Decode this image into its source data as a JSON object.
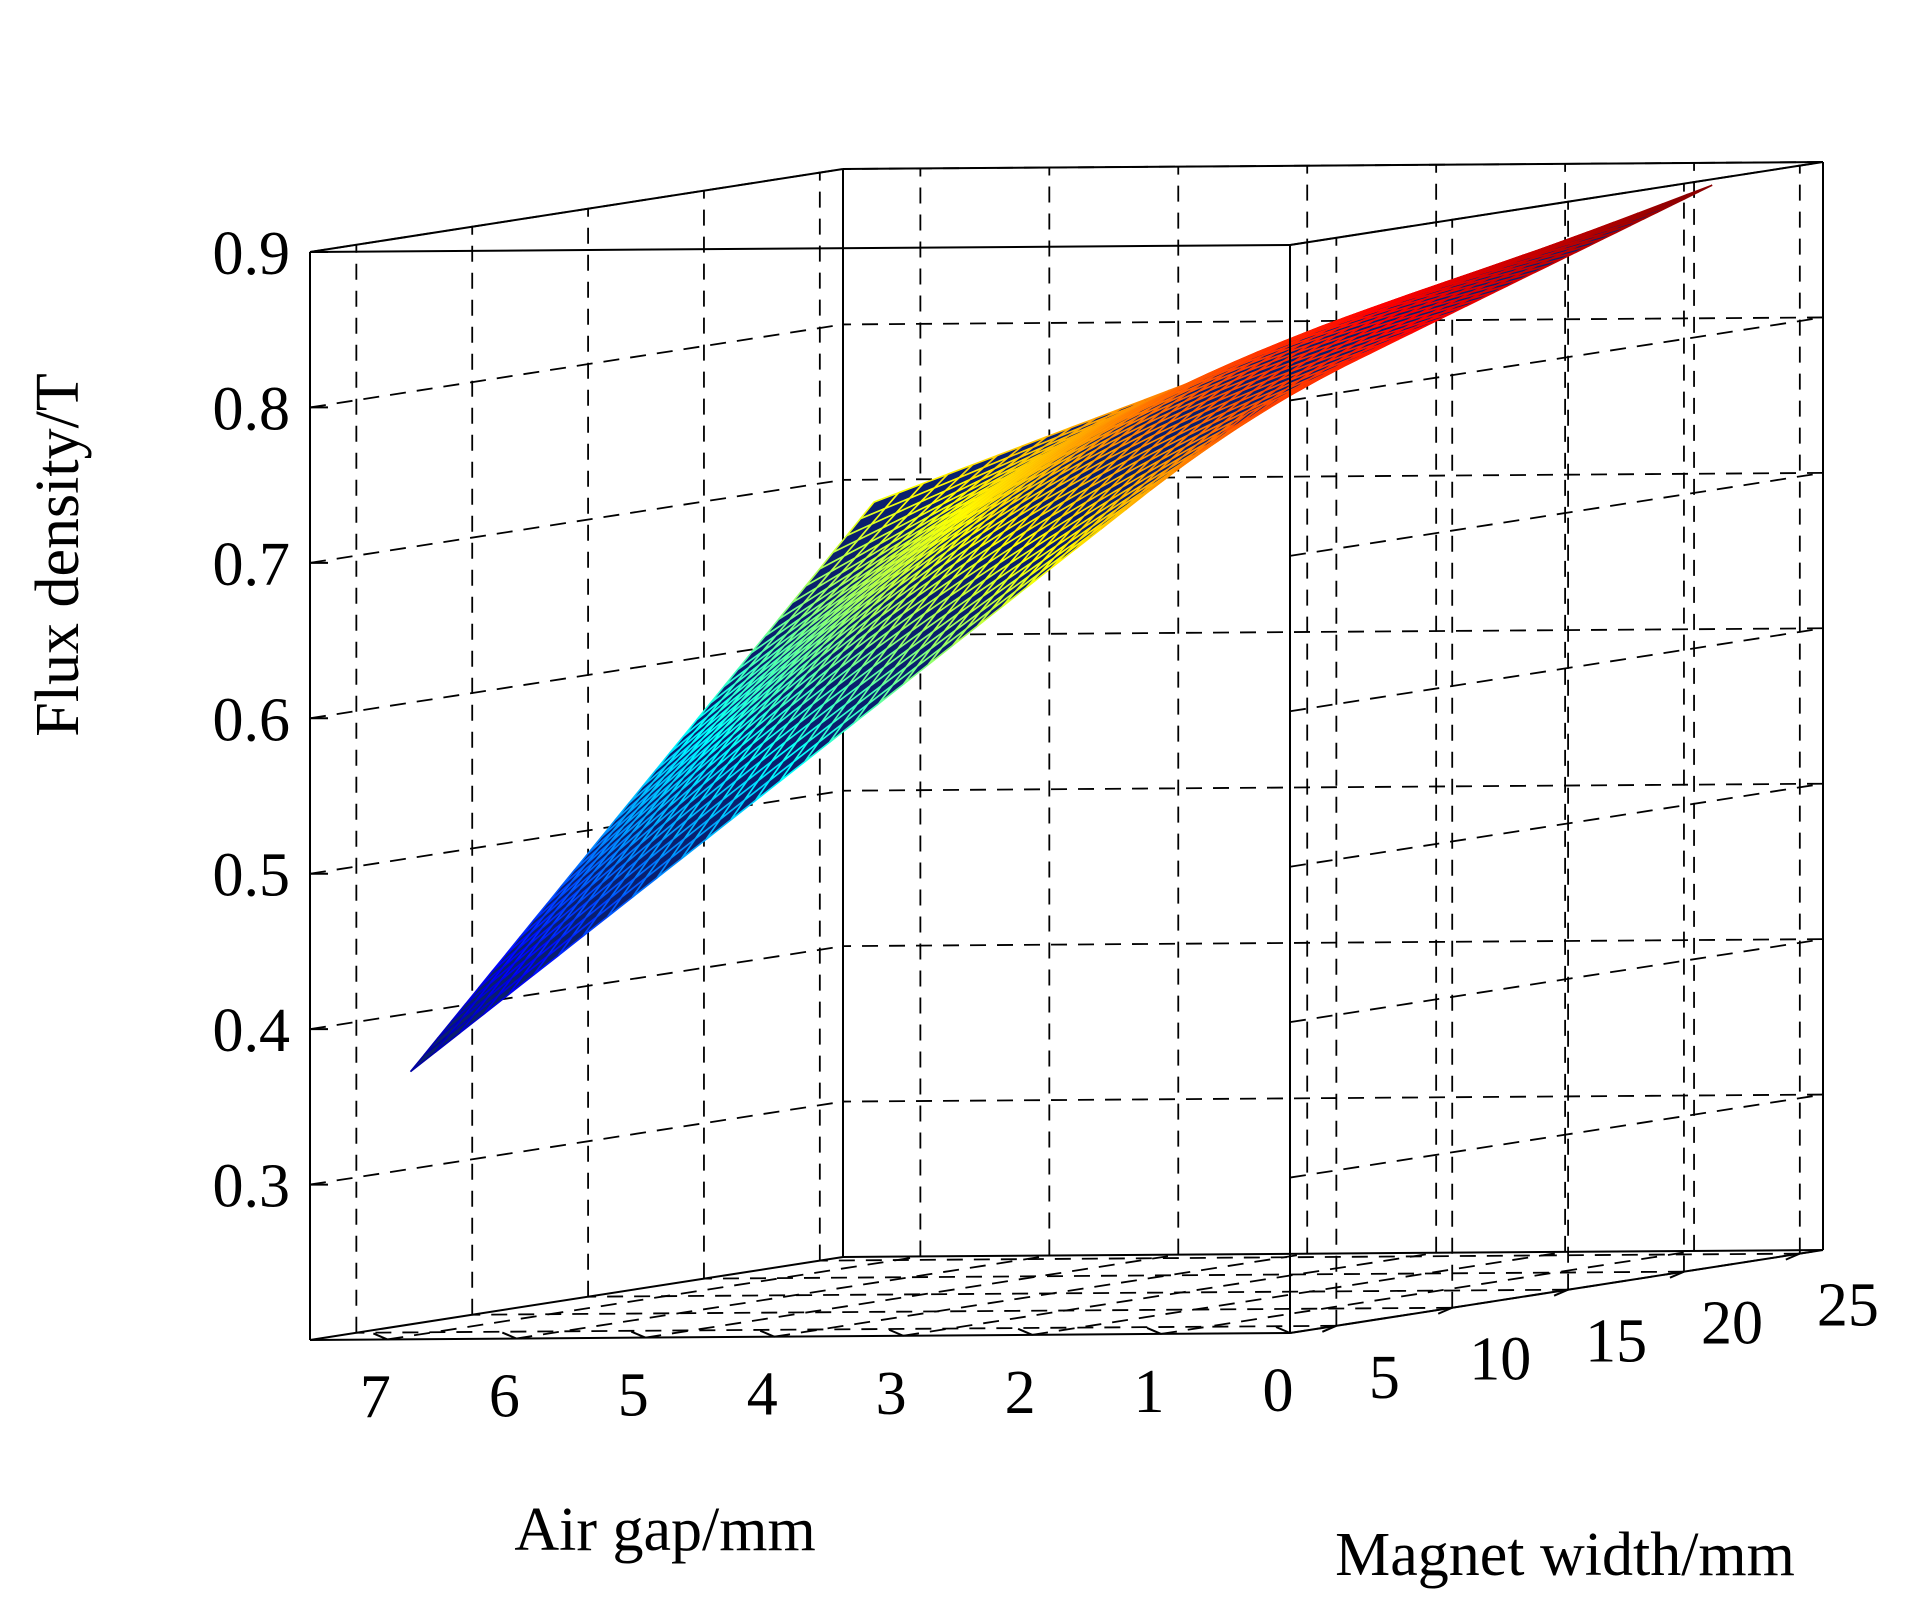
{
  "chart_data": {
    "type": "surface",
    "title": "",
    "xlabel": "Air gap/mm",
    "ylabel": "Magnet width/mm",
    "zlabel": "Flux density/T",
    "x_ticks": [
      "0",
      "1",
      "2",
      "3",
      "4",
      "5",
      "6",
      "7"
    ],
    "y_ticks": [
      "5",
      "10",
      "15",
      "20",
      "25"
    ],
    "z_ticks": [
      "0.3",
      "0.4",
      "0.5",
      "0.6",
      "0.7",
      "0.8",
      "0.9"
    ],
    "xlim": [
      0,
      7.6
    ],
    "ylim": [
      3,
      26
    ],
    "zlim": [
      0.2,
      0.9
    ],
    "grid": true,
    "colormap": "jet",
    "colormap_colors": [
      "#00008f",
      "#0000ff",
      "#00ffff",
      "#ffff00",
      "#ff0000",
      "#800000"
    ],
    "surface": {
      "description_ranges": {
        "air_gap": [
          0.5,
          7.0
        ],
        "magnet_width": [
          4,
          24
        ]
      },
      "corner_values": [
        {
          "air_gap": 7.0,
          "magnet_width": 4,
          "flux_density": 0.37
        },
        {
          "air_gap": 7.0,
          "magnet_width": 24,
          "flux_density": 0.69
        },
        {
          "air_gap": 0.5,
          "magnet_width": 4,
          "flux_density": 0.79
        },
        {
          "air_gap": 0.5,
          "magnet_width": 24,
          "flux_density": 0.89
        }
      ],
      "peak_flux_density": 0.9
    }
  }
}
